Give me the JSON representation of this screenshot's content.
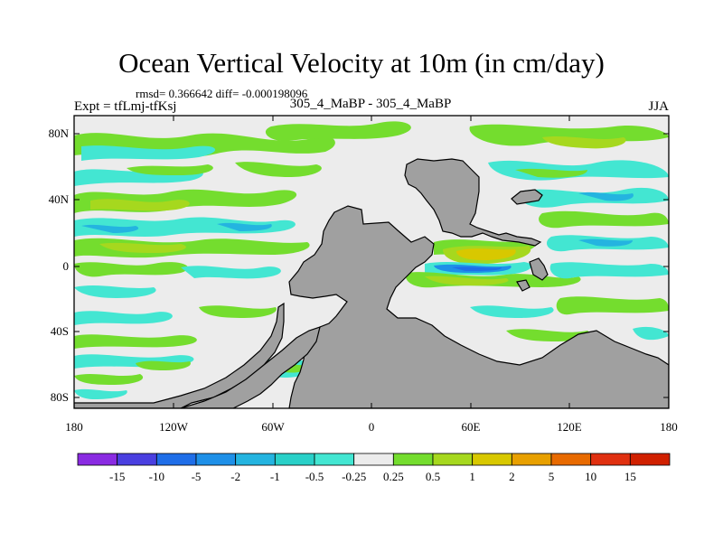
{
  "title": "Ocean Vertical Velocity at 10m (in cm/day)",
  "stats": "rmsd= 0.366642 diff= -0.000198096",
  "expt": "Expt = tfLmj-tfKsj",
  "subtitle": "305_4_MaBP - 305_4_MaBP",
  "season": "JJA",
  "axes": {
    "y_ticks": [
      "80N",
      "40N",
      "0",
      "40S",
      "80S"
    ],
    "x_ticks": [
      "180",
      "120W",
      "60W",
      "0",
      "60E",
      "120E",
      "180"
    ]
  },
  "colorbar": {
    "labels": [
      "-15",
      "-10",
      "-5",
      "-2",
      "-1",
      "-0.5",
      "-0.25",
      "0.25",
      "0.5",
      "1",
      "2",
      "5",
      "10",
      "15"
    ],
    "colors": [
      "#8a2be2",
      "#4a3fe0",
      "#1f6ee8",
      "#1e90e8",
      "#24b4e0",
      "#29d0c8",
      "#43e6d2",
      "#ececec",
      "#74dd2e",
      "#a6d81e",
      "#d8c800",
      "#e8a000",
      "#e86a00",
      "#e03010",
      "#d02000"
    ]
  },
  "map_colors": {
    "land": "#a0a0a0",
    "ocean_neutral": "#ececec",
    "frame": "#000000"
  }
}
